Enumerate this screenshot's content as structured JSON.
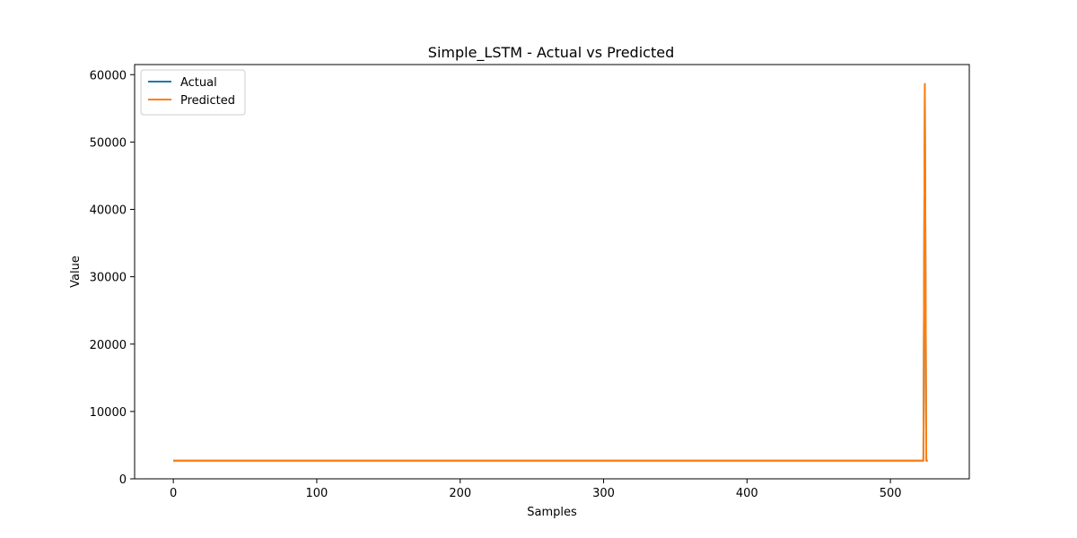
{
  "chart_data": {
    "type": "line",
    "title": "Simple_LSTM - Actual vs Predicted",
    "xlabel": "Samples",
    "ylabel": "Value",
    "xlim": [
      -27,
      555
    ],
    "ylim": [
      0,
      61500
    ],
    "xticks": [
      0,
      100,
      200,
      300,
      400,
      500
    ],
    "yticks": [
      0,
      10000,
      20000,
      30000,
      40000,
      50000,
      60000
    ],
    "legend": "top-left",
    "grid": false,
    "series": [
      {
        "name": "Actual",
        "color": "#1f77b4",
        "x": [
          0,
          523,
          524,
          525,
          526
        ],
        "y": [
          2700,
          2700,
          58600,
          2700,
          2700
        ]
      },
      {
        "name": "Predicted",
        "color": "#ff7f0e",
        "x": [
          0,
          523,
          524,
          525,
          526
        ],
        "y": [
          2700,
          2700,
          58600,
          2700,
          2700
        ]
      }
    ]
  }
}
